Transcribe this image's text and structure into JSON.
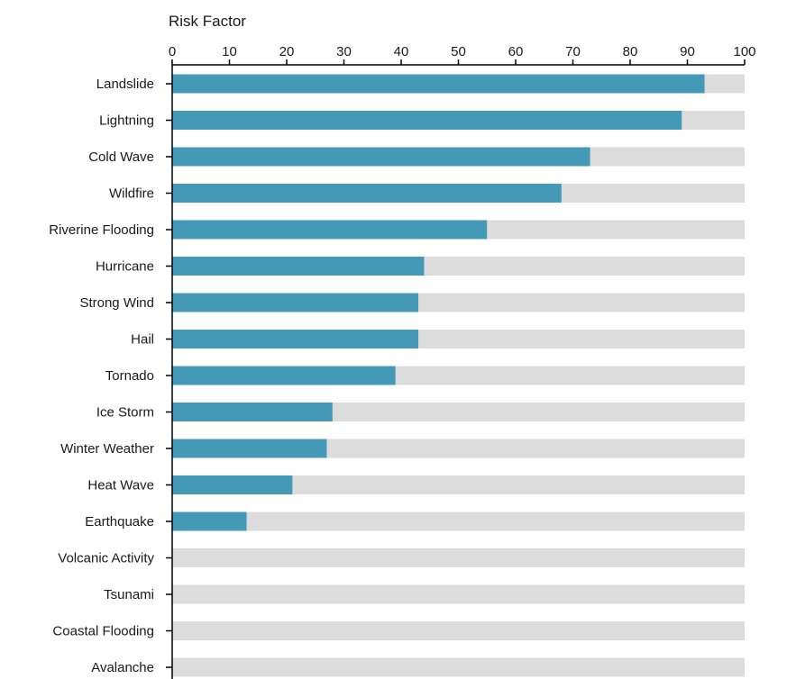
{
  "chart_data": {
    "type": "bar",
    "orientation": "horizontal",
    "xlabel": "Risk Factor",
    "xaxis_position": "top",
    "xlim": [
      0,
      100
    ],
    "xticks": [
      0,
      10,
      20,
      30,
      40,
      50,
      60,
      70,
      80,
      90,
      100
    ],
    "grid": false,
    "legend": "none",
    "categories": [
      "Landslide",
      "Lightning",
      "Cold Wave",
      "Wildfire",
      "Riverine Flooding",
      "Hurricane",
      "Strong Wind",
      "Hail",
      "Tornado",
      "Ice Storm",
      "Winter Weather",
      "Heat Wave",
      "Earthquake",
      "Volcanic Activity",
      "Tsunami",
      "Coastal Flooding",
      "Avalanche"
    ],
    "values": [
      93,
      89,
      73,
      68,
      55,
      44,
      43,
      43,
      39,
      28,
      27,
      21,
      13,
      0,
      0,
      0,
      0
    ],
    "background_max": 100,
    "colors": {
      "bar": "#4499b6",
      "track": "#dcdcdc",
      "axis": "#000000"
    }
  }
}
